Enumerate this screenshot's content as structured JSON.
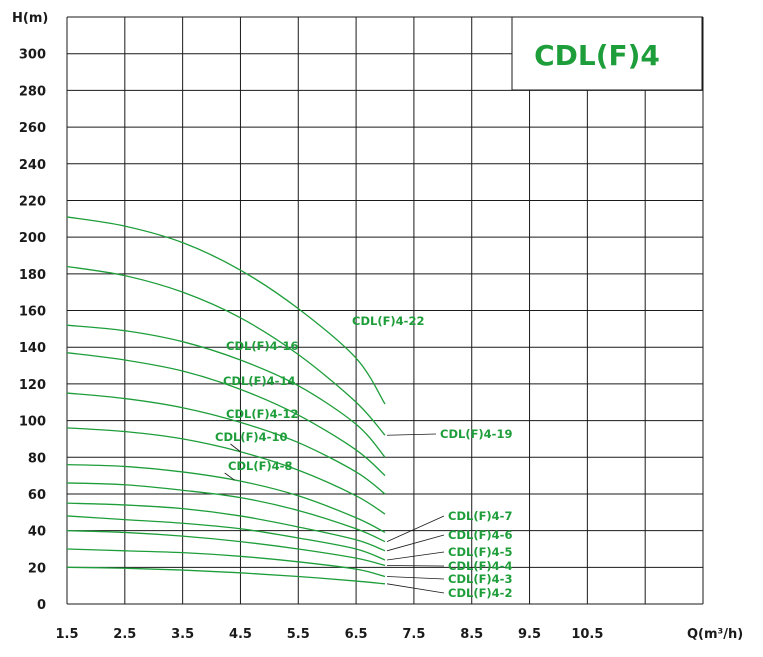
{
  "chart_data": {
    "type": "line",
    "title": "CDL(F)4",
    "ylabel": "H(m)",
    "xlabel": "Q(m³/h)",
    "xlim": [
      1.5,
      12.5
    ],
    "ylim": [
      0,
      320
    ],
    "x_ticks": [
      "1.5",
      "2.5",
      "3.5",
      "4.5",
      "5.5",
      "6.5",
      "7.5",
      "8.5",
      "9.5",
      "10.5"
    ],
    "y_ticks": [
      "0",
      "20",
      "40",
      "60",
      "80",
      "100",
      "120",
      "140",
      "160",
      "180",
      "200",
      "220",
      "240",
      "260",
      "280",
      "300"
    ],
    "grid": true,
    "colors": {
      "curve": "#1e9e3a",
      "grid": "#1a1a1a",
      "title": "#1e9e3a"
    },
    "series": [
      {
        "name": "CDL(F)4-22",
        "x": [
          1.5,
          2.5,
          3.5,
          4.5,
          5.5,
          6.5,
          7.0
        ],
        "y": [
          211,
          206,
          197,
          182,
          161,
          134,
          109
        ]
      },
      {
        "name": "CDL(F)4-19",
        "x": [
          1.5,
          2.5,
          3.5,
          4.5,
          5.5,
          6.5,
          7.0
        ],
        "y": [
          184,
          179,
          170,
          156,
          136,
          110,
          92
        ]
      },
      {
        "name": "CDL(F)4-16",
        "x": [
          1.5,
          2.5,
          3.5,
          4.5,
          5.5,
          6.5,
          7.0
        ],
        "y": [
          152,
          149,
          143,
          133,
          119,
          98,
          80
        ]
      },
      {
        "name": "CDL(F)4-14",
        "x": [
          1.5,
          2.5,
          3.5,
          4.5,
          5.5,
          6.5,
          7.0
        ],
        "y": [
          137,
          133,
          127,
          117,
          103,
          84,
          70
        ]
      },
      {
        "name": "CDL(F)4-12",
        "x": [
          1.5,
          2.5,
          3.5,
          4.5,
          5.5,
          6.5,
          7.0
        ],
        "y": [
          115,
          112,
          107,
          99,
          88,
          72,
          60
        ]
      },
      {
        "name": "CDL(F)4-10",
        "x": [
          1.5,
          2.5,
          3.5,
          4.5,
          5.5,
          6.5,
          7.0
        ],
        "y": [
          96,
          94,
          90,
          83,
          73,
          59,
          49
        ]
      },
      {
        "name": "CDL(F)4-8",
        "x": [
          1.5,
          2.5,
          3.5,
          4.5,
          5.5,
          6.5,
          7.0
        ],
        "y": [
          76,
          75,
          72,
          67,
          59,
          47,
          39
        ]
      },
      {
        "name": "CDL(F)4-7",
        "x": [
          1.5,
          2.5,
          3.5,
          4.5,
          5.5,
          6.5,
          7.0
        ],
        "y": [
          66,
          65,
          62,
          58,
          51,
          41,
          34
        ]
      },
      {
        "name": "CDL(F)4-6",
        "x": [
          1.5,
          2.5,
          3.5,
          4.5,
          5.5,
          6.5,
          7.0
        ],
        "y": [
          55,
          54,
          52,
          48,
          42,
          35,
          29
        ]
      },
      {
        "name": "CDL(F)4-5",
        "x": [
          1.5,
          2.5,
          3.5,
          4.5,
          5.5,
          6.5,
          7.0
        ],
        "y": [
          48,
          46,
          44,
          41,
          36,
          30,
          24
        ]
      },
      {
        "name": "CDL(F)4-4",
        "x": [
          1.5,
          2.5,
          3.5,
          4.5,
          5.5,
          6.5,
          7.0
        ],
        "y": [
          40,
          39,
          37,
          34,
          30,
          25,
          21
        ]
      },
      {
        "name": "CDL(F)4-3",
        "x": [
          1.5,
          2.5,
          3.5,
          4.5,
          5.5,
          6.5,
          7.0
        ],
        "y": [
          30,
          29,
          28,
          26,
          23,
          19,
          15
        ]
      },
      {
        "name": "CDL(F)4-2",
        "x": [
          1.5,
          2.5,
          3.5,
          4.5,
          5.5,
          6.5,
          7.0
        ],
        "y": [
          20,
          19.5,
          18.5,
          17,
          15,
          12.5,
          11
        ]
      }
    ]
  }
}
